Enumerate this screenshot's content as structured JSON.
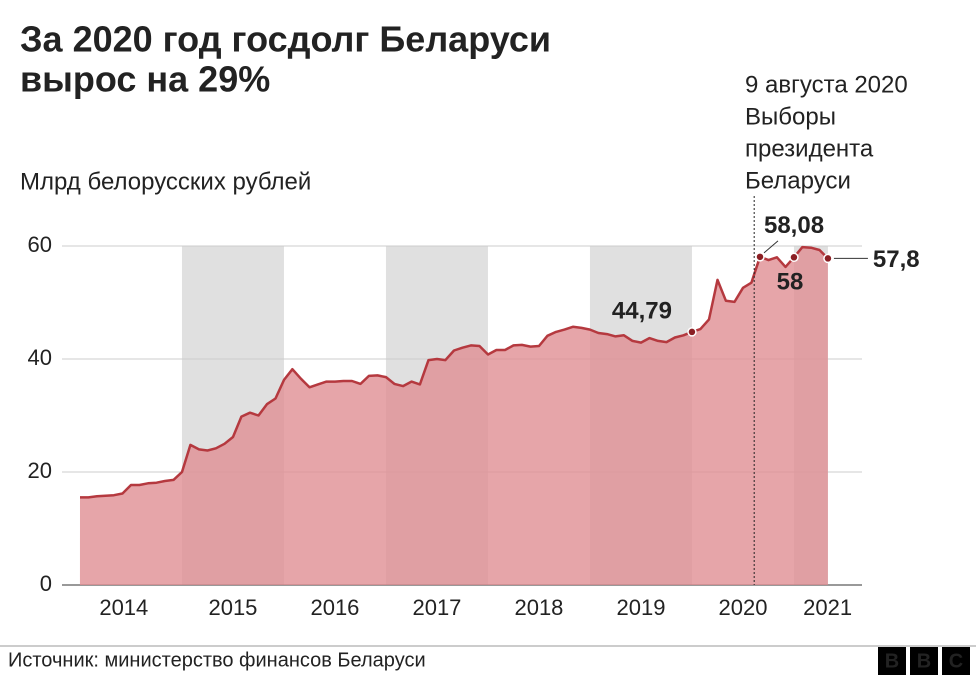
{
  "chart_data": {
    "type": "area",
    "title_lines": [
      "За 2020 год госдолг Беларуси",
      "вырос на 29%"
    ],
    "y_label": "Млрд белорусских рублей",
    "x": [
      2014,
      2014.083,
      2014.167,
      2014.25,
      2014.333,
      2014.417,
      2014.5,
      2014.583,
      2014.667,
      2014.75,
      2014.833,
      2014.917,
      2015,
      2015.083,
      2015.167,
      2015.25,
      2015.333,
      2015.417,
      2015.5,
      2015.583,
      2015.667,
      2015.75,
      2015.833,
      2015.917,
      2016,
      2016.083,
      2016.167,
      2016.25,
      2016.333,
      2016.417,
      2016.5,
      2016.583,
      2016.667,
      2016.75,
      2016.833,
      2016.917,
      2017,
      2017.083,
      2017.167,
      2017.25,
      2017.333,
      2017.417,
      2017.5,
      2017.583,
      2017.667,
      2017.75,
      2017.833,
      2017.917,
      2018,
      2018.083,
      2018.167,
      2018.25,
      2018.333,
      2018.417,
      2018.5,
      2018.583,
      2018.667,
      2018.75,
      2018.833,
      2018.917,
      2019,
      2019.083,
      2019.167,
      2019.25,
      2019.333,
      2019.417,
      2019.5,
      2019.583,
      2019.667,
      2019.75,
      2019.833,
      2019.917,
      2020,
      2020.083,
      2020.167,
      2020.25,
      2020.333,
      2020.417,
      2020.5,
      2020.583,
      2020.667,
      2020.75,
      2020.833,
      2020.917,
      2021,
      2021.083,
      2021.167,
      2021.25,
      2021.333
    ],
    "series": [
      {
        "name": "Госдолг",
        "color": "#b5393f",
        "fill": "#e08f93",
        "values": [
          15.5,
          15.5,
          15.7,
          15.8,
          15.9,
          16.2,
          17.7,
          17.7,
          18.0,
          18.1,
          18.4,
          18.6,
          20.0,
          24.8,
          24.0,
          23.8,
          24.2,
          25.0,
          26.2,
          29.8,
          30.5,
          30.0,
          32.0,
          33.0,
          36.3,
          38.2,
          36.5,
          35.0,
          35.5,
          36.0,
          36.0,
          36.1,
          36.1,
          35.6,
          37.0,
          37.1,
          36.8,
          35.6,
          35.2,
          36.0,
          35.5,
          39.8,
          40.0,
          39.8,
          41.5,
          42.0,
          42.4,
          42.3,
          40.8,
          41.6,
          41.6,
          42.4,
          42.5,
          42.2,
          42.3,
          44.1,
          44.8,
          45.2,
          45.7,
          45.5,
          45.2,
          44.6,
          44.4,
          44.0,
          44.2,
          43.2,
          42.9,
          43.7,
          43.2,
          43.0,
          43.8,
          44.2,
          44.79,
          45.3,
          47.0,
          54.0,
          50.3,
          50.1,
          52.6,
          53.5,
          58.08,
          57.5,
          58.0,
          56.3,
          58,
          59.8,
          59.7,
          59.3,
          57.8
        ],
        "value_labels": [
          null,
          null,
          null,
          null,
          null,
          null,
          null,
          null,
          null,
          null,
          null,
          null,
          null,
          null,
          null,
          null,
          null,
          null,
          null,
          null,
          null,
          null,
          null,
          null,
          null,
          null,
          null,
          null,
          null,
          null,
          null,
          null,
          null,
          null,
          null,
          null,
          null,
          null,
          null,
          null,
          null,
          null,
          null,
          null,
          null,
          null,
          null,
          null,
          null,
          null,
          null,
          null,
          null,
          null,
          null,
          null,
          null,
          null,
          null,
          null,
          null,
          null,
          null,
          null,
          null,
          null,
          null,
          null,
          null,
          null,
          null,
          null,
          "44,79",
          null,
          null,
          null,
          null,
          null,
          null,
          null,
          "58,08",
          null,
          null,
          null,
          "58",
          null,
          null,
          null,
          "57,8"
        ]
      }
    ],
    "xlim": [
      2013.824,
      2021.667
    ],
    "xticks": [
      {
        "value": 2014.43,
        "label": "2014"
      },
      {
        "value": 2015.5,
        "label": "2015"
      },
      {
        "value": 2016.5,
        "label": "2016"
      },
      {
        "value": 2017.5,
        "label": "2017"
      },
      {
        "value": 2018.5,
        "label": "2018"
      },
      {
        "value": 2019.5,
        "label": "2019"
      },
      {
        "value": 2020.5,
        "label": "2020"
      },
      {
        "value": 2021.33,
        "label": "2021"
      }
    ],
    "ylim": [
      0,
      60
    ],
    "yticks": [
      0,
      20,
      40,
      60
    ],
    "grid": true,
    "shaded_bands": [
      [
        2015,
        2016
      ],
      [
        2017,
        2018
      ],
      [
        2019,
        2020
      ],
      [
        2021,
        2021.333
      ]
    ],
    "annotation": {
      "x": 2020.61,
      "lines": [
        "9 августа 2020",
        "Выборы",
        "президента",
        "Беларуси"
      ]
    },
    "source": "Источник: министерство финансов Беларуси",
    "logo": [
      "B",
      "B",
      "C"
    ]
  }
}
